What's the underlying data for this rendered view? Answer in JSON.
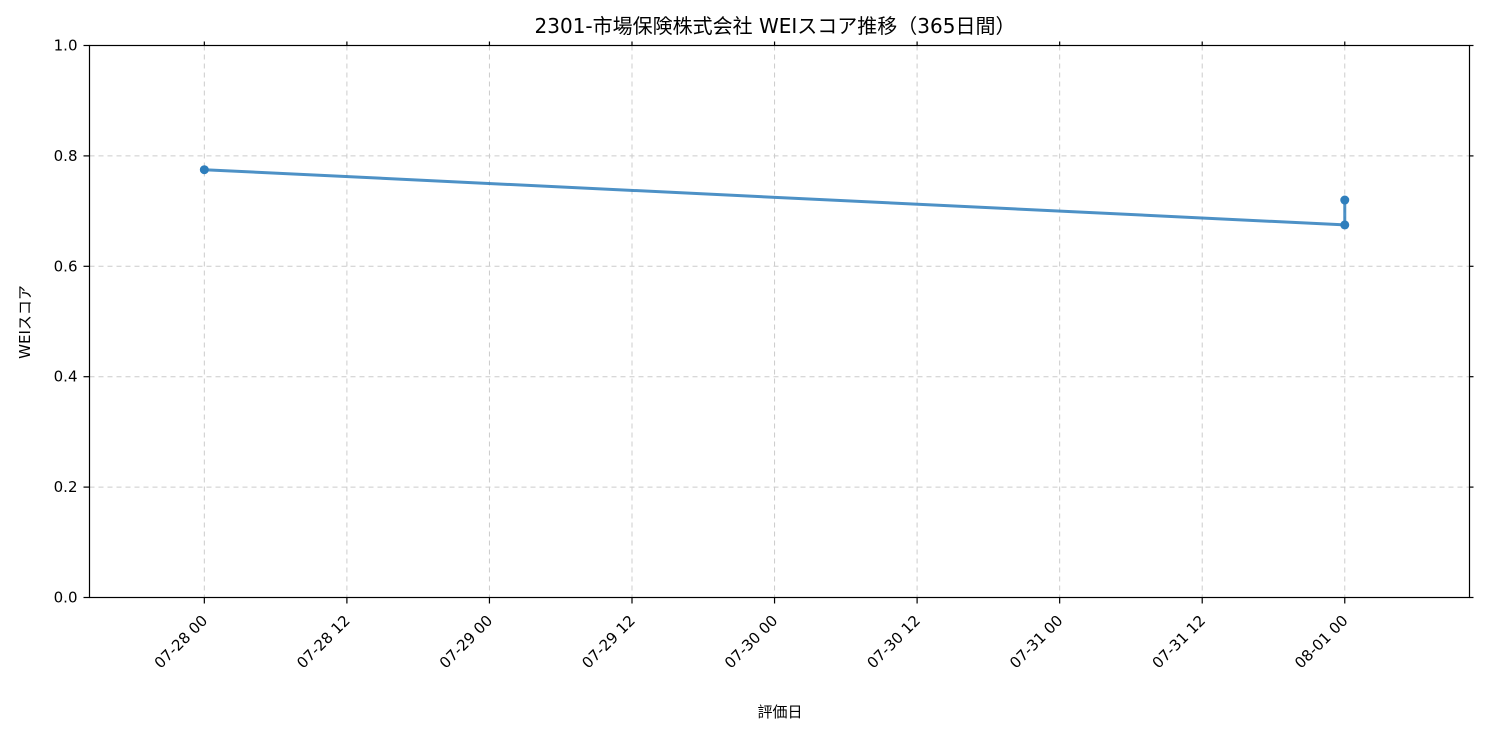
{
  "chart_data": {
    "type": "line",
    "title": "2301-市場保険株式会社 WEIスコア推移（365日間）",
    "xlabel": "評価日",
    "ylabel": "WEIスコア",
    "ylim": [
      0,
      1.0
    ],
    "y_ticks": [
      "0.0",
      "0.2",
      "0.4",
      "0.6",
      "0.8",
      "1.0"
    ],
    "y_tick_values": [
      0,
      0.2,
      0.4,
      0.6,
      0.8,
      1.0
    ],
    "xlim": [
      "2025-07-27T14:20",
      "2025-08-01T10:30"
    ],
    "x_ticks": [
      "07-28 00",
      "07-28 12",
      "07-29 00",
      "07-29 12",
      "07-30 00",
      "07-30 12",
      "07-31 00",
      "07-31 12",
      "08-01 00"
    ],
    "x_tick_values": [
      "2025-07-28T00:00",
      "2025-07-28T12:00",
      "2025-07-29T00:00",
      "2025-07-29T12:00",
      "2025-07-30T00:00",
      "2025-07-30T12:00",
      "2025-07-31T00:00",
      "2025-07-31T12:00",
      "2025-08-01T00:00"
    ],
    "grid": true,
    "series": [
      {
        "color": "#2e7ebc",
        "points": [
          {
            "x": "2025-07-28T00:00",
            "y": 0.775
          },
          {
            "x": "2025-08-01T00:00",
            "y": 0.675
          },
          {
            "x": "2025-08-01T00:00",
            "y": 0.72
          }
        ]
      }
    ]
  }
}
